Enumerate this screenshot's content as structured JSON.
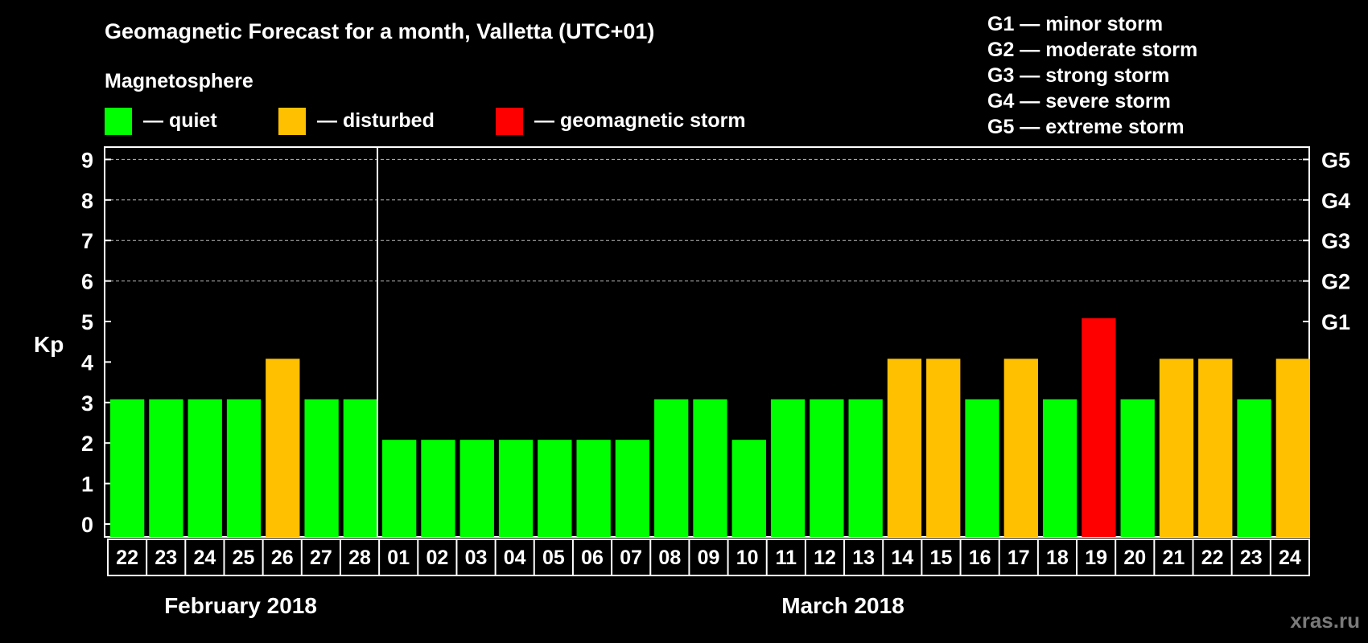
{
  "colors": {
    "quiet": "#00ff00",
    "disturbed": "#ffc000",
    "storm": "#ff0000",
    "background": "#000000",
    "foreground": "#ffffff",
    "watermark": "#7a7a7a"
  },
  "chart_data": {
    "type": "bar",
    "title": "Geomagnetic Forecast for a month, Valletta (UTC+01)",
    "ylabel": "Kp",
    "ylim": [
      0,
      9
    ],
    "yticks": [
      "0",
      "1",
      "2",
      "3",
      "4",
      "5",
      "6",
      "7",
      "8",
      "9"
    ],
    "grid": "dashed at Kp 6-9",
    "legend_title": "Magnetosphere",
    "legend": [
      {
        "label": "— quiet",
        "color_key": "quiet"
      },
      {
        "label": "— disturbed",
        "color_key": "disturbed"
      },
      {
        "label": "— geomagnetic storm",
        "color_key": "storm"
      }
    ],
    "storm_scale": [
      "G1 — minor storm",
      "G2 — moderate storm",
      "G3 — strong storm",
      "G4 — severe storm",
      "G5 — extreme storm"
    ],
    "right_axis": [
      {
        "kp": 5,
        "label": "G1"
      },
      {
        "kp": 6,
        "label": "G2"
      },
      {
        "kp": 7,
        "label": "G3"
      },
      {
        "kp": 8,
        "label": "G4"
      },
      {
        "kp": 9,
        "label": "G5"
      }
    ],
    "months": [
      {
        "label": "February 2018",
        "count": 7
      },
      {
        "label": "March 2018",
        "count": 24
      }
    ],
    "categories": [
      "22",
      "23",
      "24",
      "25",
      "26",
      "27",
      "28",
      "01",
      "02",
      "03",
      "04",
      "05",
      "06",
      "07",
      "08",
      "09",
      "10",
      "11",
      "12",
      "13",
      "14",
      "15",
      "16",
      "17",
      "18",
      "19",
      "20",
      "21",
      "22",
      "23",
      "24"
    ],
    "values": [
      3,
      3,
      3,
      3,
      4,
      3,
      3,
      2,
      2,
      2,
      2,
      2,
      2,
      2,
      3,
      3,
      2,
      3,
      3,
      3,
      4,
      4,
      3,
      4,
      3,
      5,
      3,
      4,
      4,
      3,
      4
    ],
    "status": [
      "quiet",
      "quiet",
      "quiet",
      "quiet",
      "disturbed",
      "quiet",
      "quiet",
      "quiet",
      "quiet",
      "quiet",
      "quiet",
      "quiet",
      "quiet",
      "quiet",
      "quiet",
      "quiet",
      "quiet",
      "quiet",
      "quiet",
      "quiet",
      "disturbed",
      "disturbed",
      "quiet",
      "disturbed",
      "quiet",
      "storm",
      "quiet",
      "disturbed",
      "disturbed",
      "quiet",
      "disturbed"
    ]
  },
  "watermark": "xras.ru"
}
